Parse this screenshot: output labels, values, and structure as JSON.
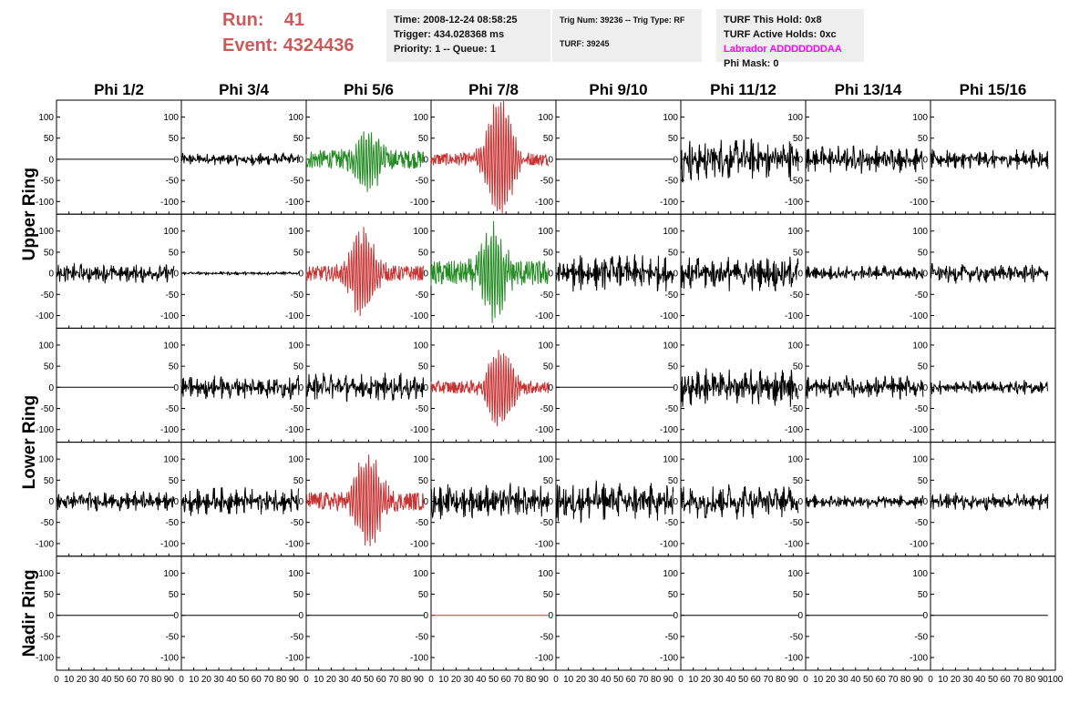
{
  "header": {
    "run_label": "Run:",
    "run_value": "41",
    "event_label": "Event:",
    "event_value": "4324436",
    "time": "Time: 2008-12-24 08:58:25",
    "trigger": "Trigger: 434.028368 ms",
    "priority": "Priority: 1 -- Queue: 1",
    "trig_num": "Trig Num: 39236 -- Trig Type: RF",
    "turf": "TURF: 39245",
    "turf_hold": "TURF This Hold: 0x8",
    "turf_active": "TURF Active Holds: 0xc",
    "labrador": "Labrador ADDDDDDDAA",
    "phi_mask": "Phi Mask: 0"
  },
  "colors": {
    "default_trace": "#000000",
    "green_trace": "#228b22",
    "red_trace": "#c83232",
    "header_red": "#cd5a5a",
    "labrador": "#ff00ff"
  },
  "chart_data": {
    "type": "line",
    "columns": [
      "Phi 1/2",
      "Phi 3/4",
      "Phi 5/6",
      "Phi 7/8",
      "Phi 9/10",
      "Phi 11/12",
      "Phi 13/14",
      "Phi 15/16"
    ],
    "rows": [
      "Upper Ring",
      "Upper Ring",
      "Lower Ring",
      "Lower Ring",
      "Nadir Ring"
    ],
    "ring_labels": [
      "Upper Ring",
      "Lower Ring",
      "Nadir Ring"
    ],
    "xlim": [
      0,
      100
    ],
    "ylim": [
      -130,
      140
    ],
    "x_ticks": [
      "0",
      "10",
      "20",
      "30",
      "40",
      "50",
      "60",
      "70",
      "80",
      "90",
      "100"
    ],
    "y_ticks": [
      "100",
      "50",
      "0",
      "-50",
      "-100"
    ],
    "panels": [
      [
        {
          "style": "flat",
          "amp": 0,
          "color": "default"
        },
        {
          "style": "noise",
          "amp": 16,
          "color": "default"
        },
        {
          "style": "pulse",
          "amp": 22,
          "peak": 60,
          "center": 50,
          "color": "green"
        },
        {
          "style": "pulse",
          "amp": 15,
          "peak": 140,
          "center": 55,
          "color": "red"
        },
        {
          "style": "flat",
          "amp": 0,
          "color": "default"
        },
        {
          "style": "noise",
          "amp": 55,
          "color": "default"
        },
        {
          "style": "noise",
          "amp": 35,
          "color": "default"
        },
        {
          "style": "noise",
          "amp": 25,
          "color": "default"
        }
      ],
      [
        {
          "style": "noise",
          "amp": 25,
          "color": "default"
        },
        {
          "style": "noise",
          "amp": 4,
          "color": "default"
        },
        {
          "style": "pulse",
          "amp": 18,
          "peak": 100,
          "center": 45,
          "color": "red"
        },
        {
          "style": "pulse",
          "amp": 30,
          "peak": 100,
          "center": 50,
          "color": "green"
        },
        {
          "style": "noise",
          "amp": 45,
          "color": "default"
        },
        {
          "style": "noise",
          "amp": 45,
          "color": "default"
        },
        {
          "style": "noise",
          "amp": 20,
          "color": "default"
        },
        {
          "style": "noise",
          "amp": 25,
          "color": "default"
        }
      ],
      [
        {
          "style": "flat",
          "amp": 0,
          "color": "default"
        },
        {
          "style": "noise",
          "amp": 30,
          "color": "default"
        },
        {
          "style": "noise",
          "amp": 35,
          "color": "default"
        },
        {
          "style": "pulse",
          "amp": 15,
          "peak": 90,
          "center": 55,
          "color": "red"
        },
        {
          "style": "flat",
          "amp": 0,
          "color": "default"
        },
        {
          "style": "noise",
          "amp": 50,
          "color": "default"
        },
        {
          "style": "noise",
          "amp": 30,
          "color": "default"
        },
        {
          "style": "noise",
          "amp": 18,
          "color": "default"
        }
      ],
      [
        {
          "style": "noise",
          "amp": 25,
          "color": "default"
        },
        {
          "style": "noise",
          "amp": 35,
          "color": "default"
        },
        {
          "style": "pulse",
          "amp": 22,
          "peak": 110,
          "center": 50,
          "color": "red"
        },
        {
          "style": "noise",
          "amp": 45,
          "color": "default"
        },
        {
          "style": "noise",
          "amp": 50,
          "color": "default"
        },
        {
          "style": "noise",
          "amp": 45,
          "color": "default"
        },
        {
          "style": "noise",
          "amp": 18,
          "color": "default"
        },
        {
          "style": "noise",
          "amp": 22,
          "color": "default"
        }
      ],
      [
        {
          "style": "flat",
          "amp": 0,
          "color": "default"
        },
        {
          "style": "flat",
          "amp": 0,
          "color": "default"
        },
        {
          "style": "flat",
          "amp": 0,
          "color": "default"
        },
        {
          "style": "flat",
          "amp": 0,
          "color": "red"
        },
        {
          "style": "flat",
          "amp": 0,
          "color": "default"
        },
        {
          "style": "flat",
          "amp": 0,
          "color": "default"
        },
        {
          "style": "flat",
          "amp": 0,
          "color": "default"
        },
        {
          "style": "flat",
          "amp": 0,
          "color": "default"
        }
      ]
    ]
  }
}
